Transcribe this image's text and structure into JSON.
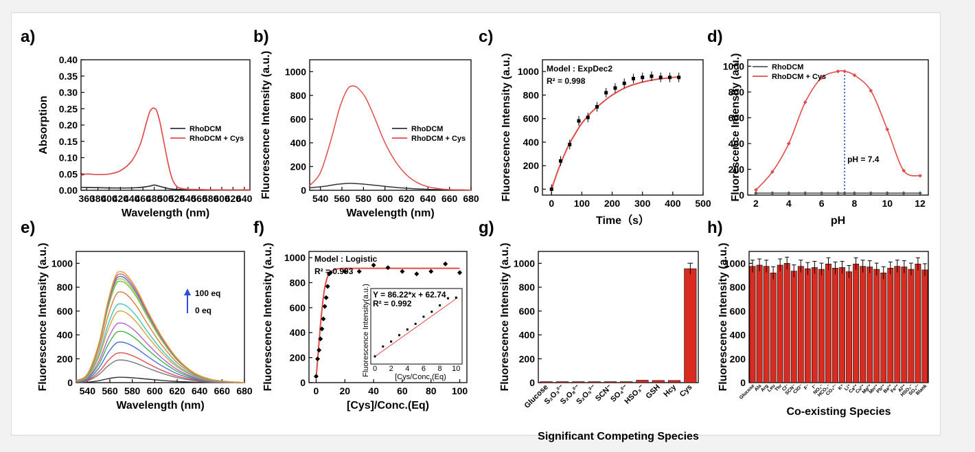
{
  "colors": {
    "red": "#e34a4a",
    "black": "#333333",
    "bar": "#d92b1f",
    "blue": "#2b4fd6",
    "lineRed": "#e8514f"
  },
  "chart_data": [
    {
      "id": "a",
      "panel_label": "a)",
      "type": "line",
      "xlabel": "Wavelength (nm)",
      "ylabel": "Absorption",
      "xlim": [
        350,
        650
      ],
      "ylim": [
        0,
        0.4
      ],
      "xticks": [
        "360",
        "380",
        "400",
        "420",
        "440",
        "460",
        "480",
        "500",
        "520",
        "540",
        "560",
        "580",
        "600",
        "620",
        "640"
      ],
      "yticks": [
        "0.00",
        "0.05",
        "0.10",
        "0.15",
        "0.20",
        "0.25",
        "0.30",
        "0.35",
        "0.40"
      ],
      "legend_position": "right",
      "series": [
        {
          "name": "RhoDCM",
          "color": "#333333",
          "x": [
            350,
            380,
            420,
            450,
            470,
            480,
            490,
            510,
            540,
            600,
            650
          ],
          "y": [
            0.009,
            0.008,
            0.007,
            0.008,
            0.012,
            0.016,
            0.012,
            0.004,
            0.002,
            0.001,
            0.001
          ]
        },
        {
          "name": "RhoDCM + Cys",
          "color": "#e34a4a",
          "x": [
            350,
            360,
            380,
            400,
            420,
            440,
            455,
            465,
            472,
            478,
            481,
            484,
            490,
            498,
            505,
            512,
            520,
            530,
            545,
            570,
            600,
            650
          ],
          "y": [
            0.045,
            0.05,
            0.048,
            0.05,
            0.06,
            0.09,
            0.14,
            0.2,
            0.24,
            0.252,
            0.25,
            0.245,
            0.21,
            0.14,
            0.08,
            0.035,
            0.012,
            0.005,
            0.003,
            0.002,
            0.001,
            0.001
          ]
        }
      ]
    },
    {
      "id": "b",
      "panel_label": "b)",
      "type": "line",
      "xlabel": "Wavelength (nm)",
      "ylabel": "Fluorescence Intensity (a.u.)",
      "xlim": [
        530,
        680
      ],
      "ylim": [
        0,
        1100
      ],
      "xticks": [
        "540",
        "560",
        "580",
        "600",
        "620",
        "640",
        "660",
        "680"
      ],
      "yticks": [
        "0",
        "200",
        "400",
        "600",
        "800",
        "1000"
      ],
      "legend_position": "right",
      "series": [
        {
          "name": "RhoDCM",
          "color": "#333333",
          "x": [
            530,
            545,
            555,
            565,
            570,
            580,
            595,
            615,
            640,
            680
          ],
          "y": [
            20,
            35,
            50,
            58,
            58,
            52,
            38,
            20,
            8,
            2
          ]
        },
        {
          "name": "RhoDCM + Cys",
          "color": "#e34a4a",
          "x": [
            530,
            540,
            550,
            558,
            565,
            570,
            575,
            582,
            590,
            600,
            610,
            620,
            630,
            640,
            650,
            660,
            680
          ],
          "y": [
            40,
            150,
            430,
            700,
            850,
            880,
            860,
            780,
            620,
            400,
            240,
            130,
            65,
            30,
            14,
            6,
            2
          ]
        }
      ]
    },
    {
      "id": "c",
      "panel_label": "c)",
      "type": "scatter",
      "xlabel": "Time（s）",
      "ylabel": "Fluorescence Intensity (a.u.)",
      "xlim": [
        -30,
        500
      ],
      "ylim": [
        -50,
        1100
      ],
      "xticks": [
        "0",
        "100",
        "200",
        "300",
        "400",
        "500"
      ],
      "yticks": [
        "0",
        "200",
        "400",
        "600",
        "800",
        "1000"
      ],
      "annotations": [
        "Model : ExpDec2",
        "R² = 0.998"
      ],
      "series": [
        {
          "name": "data",
          "color": "#000000",
          "x": [
            0,
            30,
            60,
            90,
            120,
            150,
            180,
            210,
            240,
            270,
            300,
            330,
            360,
            390,
            420
          ],
          "y": [
            0,
            240,
            380,
            580,
            610,
            700,
            820,
            860,
            900,
            940,
            950,
            960,
            950,
            950,
            950
          ]
        },
        {
          "name": "fit",
          "color": "#e34a4a",
          "x": [
            0,
            20,
            40,
            60,
            80,
            100,
            130,
            160,
            200,
            250,
            300,
            350,
            420
          ],
          "y": [
            0,
            150,
            280,
            390,
            480,
            560,
            650,
            720,
            800,
            870,
            910,
            935,
            955
          ]
        }
      ]
    },
    {
      "id": "d",
      "panel_label": "d)",
      "type": "line",
      "xlabel": "pH",
      "ylabel": "Fluorescence Intensity (a.u.)",
      "xlim": [
        1.5,
        12.5
      ],
      "ylim": [
        0,
        1050
      ],
      "xticks": [
        "2",
        "4",
        "6",
        "8",
        "10",
        "12"
      ],
      "yticks": [
        "0",
        "200",
        "400",
        "600",
        "800",
        "1000"
      ],
      "legend_position": "top-left",
      "annotations": [
        "pH = 7.4"
      ],
      "series": [
        {
          "name": "RhoDCM",
          "color": "#555555",
          "x": [
            2,
            3,
            4,
            5,
            6,
            7,
            7.4,
            8,
            9,
            10,
            11,
            12
          ],
          "y": [
            15,
            15,
            15,
            15,
            15,
            15,
            15,
            15,
            15,
            15,
            15,
            15
          ]
        },
        {
          "name": "RhoDCM + Cys",
          "color": "#e34a4a",
          "x": [
            2,
            3,
            4,
            5,
            6,
            7,
            7.4,
            8,
            9,
            10,
            11,
            12
          ],
          "y": [
            40,
            180,
            400,
            720,
            910,
            960,
            960,
            930,
            810,
            510,
            190,
            150
          ]
        }
      ]
    },
    {
      "id": "e",
      "panel_label": "e)",
      "type": "line",
      "xlabel": "Wavelength (nm)",
      "ylabel": "Fluorescence Intensity (a.u.)",
      "xlim": [
        530,
        680
      ],
      "ylim": [
        0,
        1100
      ],
      "xticks": [
        "540",
        "560",
        "580",
        "600",
        "620",
        "640",
        "660",
        "680"
      ],
      "yticks": [
        "0",
        "200",
        "400",
        "600",
        "800",
        "1000"
      ],
      "annotations": [
        "100 eq",
        "0 eq"
      ],
      "peaks": [
        45,
        190,
        250,
        340,
        430,
        500,
        600,
        660,
        760,
        850,
        870,
        890,
        910,
        930
      ],
      "series_colors": [
        "#333333",
        "#7a7a7a",
        "#e34a4a",
        "#4a6fd6",
        "#3fb04a",
        "#b05fd0",
        "#d9a23a",
        "#3cc3c8",
        "#e07b3a",
        "#6cc04a",
        "#c2c23a",
        "#3a7ad0",
        "#e05a9a",
        "#e0a030"
      ]
    },
    {
      "id": "f",
      "panel_label": "f)",
      "type": "scatter",
      "xlabel": "[Cys]/Conc.(Eq)",
      "ylabel": "Fluorescence Intensity (a.u.)",
      "xlim": [
        -5,
        105
      ],
      "ylim": [
        0,
        1050
      ],
      "xticks": [
        "0",
        "20",
        "40",
        "60",
        "80",
        "100"
      ],
      "yticks": [
        "0",
        "200",
        "400",
        "600",
        "800",
        "1000"
      ],
      "annotations": [
        "Model : Logistic",
        "R² = 0.993"
      ],
      "series": [
        {
          "name": "data",
          "color": "#000000",
          "x": [
            0,
            1,
            2,
            3,
            4,
            5,
            6,
            7,
            8,
            9,
            10,
            20,
            30,
            40,
            50,
            60,
            70,
            80,
            90,
            100
          ],
          "y": [
            50,
            190,
            260,
            350,
            430,
            510,
            610,
            680,
            770,
            870,
            880,
            890,
            890,
            940,
            920,
            890,
            870,
            890,
            950,
            880
          ]
        },
        {
          "name": "fit",
          "color": "#e34a4a",
          "x": [
            0,
            1,
            2,
            3,
            4,
            5,
            6,
            8,
            10,
            13,
            16,
            20,
            30,
            50,
            100
          ],
          "y": [
            40,
            180,
            320,
            460,
            580,
            680,
            760,
            850,
            885,
            905,
            912,
            915,
            915,
            915,
            915
          ]
        }
      ],
      "inset": {
        "xlabel": "[Cys/Conc.(Eq)",
        "ylabel": "Fluorescence Intensity(a.u.)",
        "equation": "Y = 86.22*x + 62.74",
        "r2": "R² = 0.992",
        "xticks": [
          "0",
          "2",
          "4",
          "6",
          "8",
          "10"
        ],
        "x": [
          0,
          1,
          2,
          3,
          4,
          5,
          6,
          7,
          8,
          9,
          10
        ],
        "y": [
          50,
          190,
          260,
          350,
          430,
          510,
          610,
          680,
          770,
          870,
          880
        ]
      }
    },
    {
      "id": "g",
      "panel_label": "g)",
      "type": "bar",
      "xlabel": "Significant Competing Species",
      "ylabel": "Fluorescence Intensity (a.u.)",
      "ylim": [
        0,
        1100
      ],
      "yticks": [
        "0",
        "200",
        "400",
        "600",
        "800",
        "1000"
      ],
      "categories": [
        "Glucose",
        "S₂O₃²⁻",
        "S₂O₈²⁻",
        "S₂O₅²⁻",
        "SCN⁻",
        "SO₄²⁻",
        "HSO₃⁻",
        "GSH",
        "Hcy",
        "Cys"
      ],
      "values": [
        8,
        8,
        8,
        8,
        8,
        8,
        20,
        18,
        18,
        955
      ]
    },
    {
      "id": "h",
      "panel_label": "h)",
      "type": "bar",
      "xlabel": "Co-existing Species",
      "ylabel": "Fluorescence Intensity (a.u.)",
      "ylim": [
        0,
        1100
      ],
      "yticks": [
        "0",
        "200",
        "400",
        "600",
        "800",
        "1000"
      ],
      "categories": [
        "Glucose",
        "Ala",
        "Arg",
        "Leu",
        "Thr",
        "Cl⁻",
        "SCN⁻",
        "ClO⁻",
        "F⁻",
        "I⁻",
        "NO₂⁻",
        "HCO₃⁻",
        "CO₃²⁻",
        "K⁺",
        "Li⁺",
        "Ca²⁺",
        "Cu²⁺",
        "Mg²⁺",
        "Mn²⁺",
        "Pb²⁺",
        "Ba²⁺",
        "Fe³⁺",
        "Al³⁺",
        "HSO₃⁻",
        "SO₄²⁻",
        "Blank"
      ],
      "values": [
        975,
        985,
        975,
        920,
        985,
        1000,
        935,
        975,
        955,
        965,
        950,
        995,
        960,
        965,
        930,
        995,
        975,
        970,
        950,
        920,
        960,
        975,
        970,
        950,
        995,
        945
      ]
    }
  ]
}
